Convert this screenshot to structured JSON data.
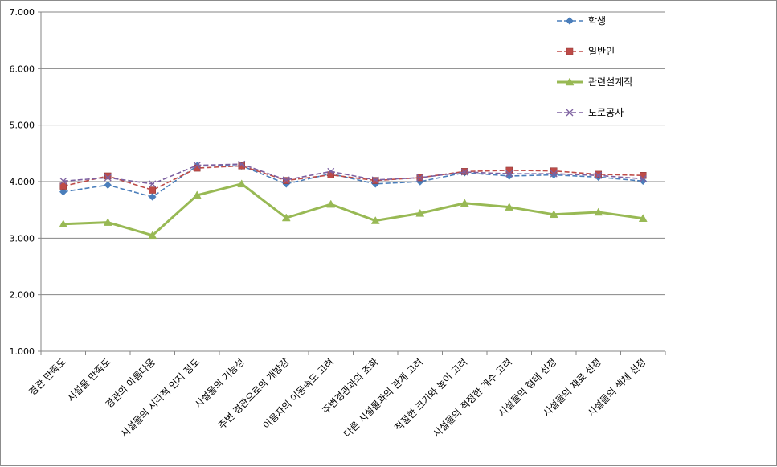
{
  "chart_data": {
    "type": "line",
    "title": "",
    "xlabel": "",
    "ylabel": "",
    "ylim": [
      1.0,
      7.0
    ],
    "yticks": [
      1.0,
      2.0,
      3.0,
      4.0,
      5.0,
      6.0,
      7.0
    ],
    "ytick_labels": [
      "1.000",
      "2.000",
      "3.000",
      "4.000",
      "5.000",
      "6.000",
      "7.000"
    ],
    "grid": "horizontal",
    "legend_position": "top-right",
    "categories": [
      "경관 만족도",
      "시설물 만족도",
      "경관의 아름다움",
      "시설물의 시각적 인지 정도",
      "시설물의 기능성",
      "주변 경관으로의 개방감",
      "이용자의 이동속도 고려",
      "주변경관과의 조화",
      "다른 시설물과의 관계 고려",
      "적절한 크기와 높이 고려",
      "시설물의 적정한 개수 고려",
      "시설물의 형태 선정",
      "시설물의 재료 선정",
      "시설물의 색채 선정"
    ],
    "series": [
      {
        "name": "학생",
        "color": "#4a7ebb",
        "line_style": "dashed",
        "marker": "diamond",
        "values": [
          3.82,
          3.94,
          3.73,
          4.28,
          4.28,
          3.96,
          4.14,
          3.96,
          4.0,
          4.16,
          4.1,
          4.12,
          4.08,
          4.01
        ]
      },
      {
        "name": "일반인",
        "color": "#be4b48",
        "line_style": "dashed",
        "marker": "square",
        "values": [
          3.92,
          4.1,
          3.85,
          4.24,
          4.28,
          4.02,
          4.12,
          4.02,
          4.07,
          4.18,
          4.2,
          4.19,
          4.13,
          4.11
        ]
      },
      {
        "name": "관련설계직",
        "color": "#98b954",
        "line_style": "solid",
        "marker": "triangle",
        "values": [
          3.25,
          3.28,
          3.05,
          3.76,
          3.96,
          3.36,
          3.6,
          3.31,
          3.44,
          3.62,
          3.55,
          3.42,
          3.46,
          3.35
        ]
      },
      {
        "name": "도로공사",
        "color": "#7d60a0",
        "line_style": "dashed",
        "marker": "x",
        "values": [
          4.01,
          4.07,
          3.96,
          4.29,
          4.31,
          4.03,
          4.18,
          4.03,
          4.07,
          4.17,
          4.14,
          4.14,
          4.11,
          4.05
        ]
      }
    ]
  }
}
